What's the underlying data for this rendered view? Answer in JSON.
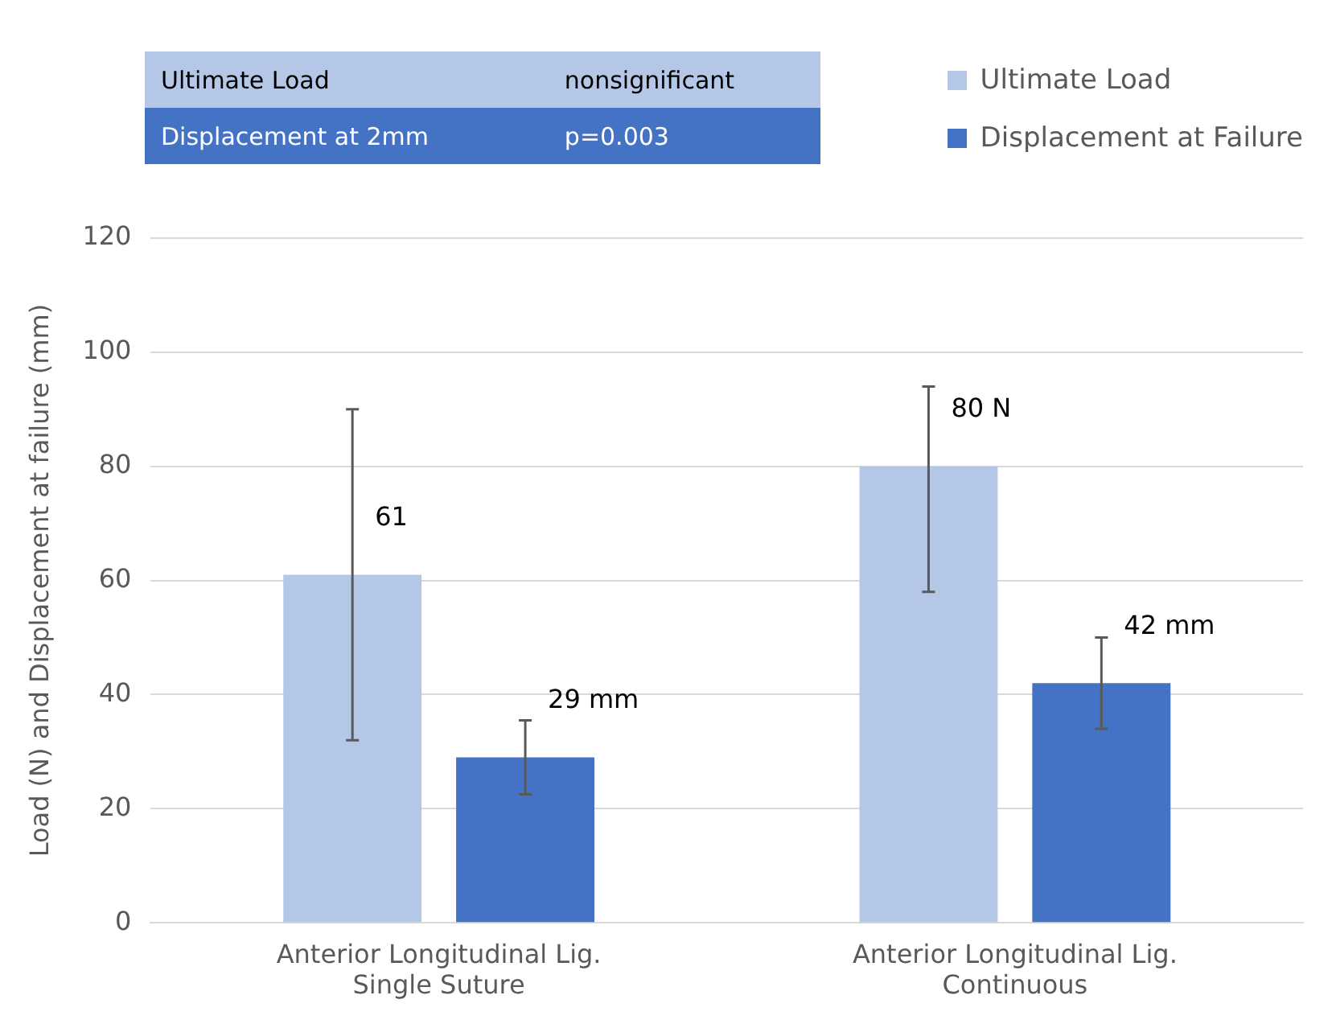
{
  "chart_data": {
    "type": "bar",
    "ylabel": "Load (N) and Displacement at failure (mm)",
    "categories": [
      "Anterior Longitudinal Lig.\nSingle Suture",
      "Anterior Longitudinal Lig.\nContinuous"
    ],
    "series": [
      {
        "name": "Ultimate Load",
        "color": "#b4c7e7",
        "values": [
          61,
          80
        ],
        "errors": [
          [
            32,
            90
          ],
          [
            58,
            94
          ]
        ],
        "value_labels": [
          "61",
          "80 N"
        ]
      },
      {
        "name": "Displacement at Failure",
        "color": "#4472c4",
        "values": [
          29,
          42
        ],
        "errors": [
          [
            22.5,
            35.5
          ],
          [
            34,
            50
          ]
        ],
        "value_labels": [
          "29 mm",
          "42 mm"
        ]
      }
    ],
    "ylim": [
      0,
      120
    ],
    "yticks": [
      0,
      20,
      40,
      60,
      80,
      100,
      120
    ],
    "grid": "y",
    "legend": "top right",
    "annotations": [
      "Ultimate Load",
      "nonsignificant",
      "Displacement at 2mm",
      "p=0.003"
    ]
  }
}
